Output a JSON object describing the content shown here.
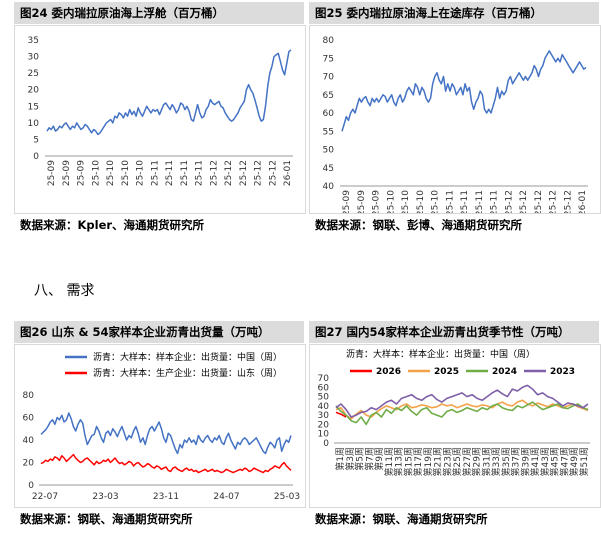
{
  "section_heading": "八、  需求",
  "source_label": "数据来源：",
  "charts": [
    {
      "id": "c24",
      "title": "图24  委内瑞拉原油海上浮舱（百万桶）",
      "source": "数据来源：Kpler、海通期货研究所"
    },
    {
      "id": "c25",
      "title": "图25  委内瑞拉原油海上在途库存（百万桶）",
      "source": "数据来源：钢联、彭博、海通期货研究所"
    },
    {
      "id": "c26",
      "title": "图26  山东 & 54家样本企业沥青出货量（万吨）",
      "source": "数据来源：钢联、海通期货研究所"
    },
    {
      "id": "c27",
      "title": "图27  国内54家样本企业沥青出货季节性（万吨）",
      "source": "数据来源：钢联、海通期货研究所"
    }
  ],
  "chart_data": [
    {
      "type": "line",
      "title": "委内瑞拉原油海上浮舱（百万桶）",
      "ylim": [
        0,
        35
      ],
      "yticks": [
        0,
        5,
        10,
        15,
        20,
        25,
        30,
        35
      ],
      "xticks": [
        "25-09",
        "25-09",
        "25-09",
        "25-10",
        "25-10",
        "25-10",
        "25-10",
        "25-11",
        "25-11",
        "25-11",
        "25-11",
        "25-12",
        "25-12",
        "25-12",
        "25-12",
        "25-12",
        "26-01"
      ],
      "series": [
        {
          "name": "",
          "color": "#4472c4",
          "values": [
            7.5,
            8.5,
            8,
            9,
            7.5,
            8,
            9,
            8.5,
            9.5,
            10,
            9,
            8,
            9,
            8.5,
            10,
            9,
            8,
            8.5,
            9.5,
            9,
            8,
            7,
            8,
            7.5,
            6.5,
            7,
            8,
            9,
            10,
            10.5,
            11,
            10,
            12,
            11.5,
            13,
            12.5,
            11.5,
            13,
            12,
            14,
            12.5,
            13.5,
            12,
            14.5,
            13,
            12,
            13.5,
            15,
            14,
            13,
            14,
            13.5,
            14,
            12.5,
            14,
            15.5,
            16,
            15,
            14,
            15.5,
            14.5,
            13,
            14,
            16,
            15.5,
            14,
            15,
            13.5,
            11,
            10.5,
            13,
            15.5,
            13,
            11.5,
            12,
            14,
            15,
            17,
            16,
            15.5,
            16,
            16.5,
            15,
            14.5,
            13,
            12,
            11,
            10.5,
            11,
            12,
            13,
            14.5,
            15.5,
            16.5,
            20,
            21.5,
            20,
            19,
            17,
            14.5,
            12,
            10.5,
            11,
            15,
            21,
            25,
            27,
            30,
            30.5,
            31,
            28.5,
            26,
            24.5,
            28,
            31.5,
            32
          ]
        }
      ]
    },
    {
      "type": "line",
      "title": "委内瑞拉原油海上在途库存（百万桶）",
      "ylim": [
        40,
        80
      ],
      "yticks": [
        40,
        45,
        50,
        55,
        60,
        65,
        70,
        75,
        80
      ],
      "xticks": [
        "25-09",
        "25-09",
        "25-09",
        "25-10",
        "25-10",
        "25-10",
        "25-10",
        "25-11",
        "25-11",
        "25-11",
        "25-11",
        "25-12",
        "25-12",
        "25-12",
        "25-12",
        "25-12",
        "26-01"
      ],
      "series": [
        {
          "name": "",
          "color": "#4472c4",
          "values": [
            55,
            57,
            59,
            58,
            60,
            61,
            60,
            62,
            64,
            63,
            64,
            64.5,
            63,
            62,
            64,
            63,
            64,
            63,
            64,
            65,
            64.5,
            63,
            64,
            65,
            63,
            62,
            64,
            65,
            63,
            64,
            66,
            67,
            66,
            65,
            68,
            67,
            65,
            67,
            66,
            64,
            63,
            64,
            68,
            70,
            71,
            69,
            68,
            70,
            66,
            68,
            66,
            68,
            67,
            65,
            66,
            67,
            65,
            68,
            66,
            67,
            63,
            61,
            63,
            64,
            66,
            65,
            61,
            60,
            61,
            60,
            62,
            64,
            67,
            64,
            66,
            65,
            66,
            69,
            70,
            68,
            69,
            70,
            71,
            70,
            69,
            70,
            69,
            70,
            71,
            73,
            72,
            70,
            72,
            73,
            75,
            76,
            77,
            76,
            75,
            74,
            75,
            74,
            76,
            75,
            74,
            73,
            72,
            71,
            72,
            73,
            74,
            73,
            72,
            72.5
          ]
        }
      ]
    },
    {
      "type": "line",
      "title": "山东 & 54家样本企业沥青出货量（万吨）",
      "ylim": [
        0,
        80
      ],
      "yticks": [
        0,
        20,
        40,
        60,
        80
      ],
      "xticks": [
        "22-07",
        "23-03",
        "23-11",
        "24-07",
        "25-03"
      ],
      "series": [
        {
          "name": "沥青：大样本：生产企业：出货量：山东（周）",
          "color": "#ff0000",
          "values": [
            19,
            20,
            22,
            21,
            23,
            22,
            25,
            24,
            22,
            26,
            24,
            21,
            23,
            25,
            27,
            24,
            22,
            20,
            21,
            23,
            24,
            22,
            20,
            18,
            21,
            19,
            20,
            22,
            21,
            23,
            20,
            22,
            24,
            21,
            19,
            20,
            18,
            19,
            21,
            20,
            17,
            19,
            20,
            18,
            16,
            17,
            19,
            18,
            16,
            15,
            17,
            16,
            14,
            15,
            16,
            13,
            12,
            15,
            16,
            14,
            13,
            12,
            14,
            15,
            13,
            14,
            12,
            13,
            11,
            12,
            13,
            14,
            12,
            13,
            14,
            12,
            13,
            12,
            11,
            12,
            14,
            13,
            12,
            11,
            12,
            13,
            14,
            13,
            15,
            14,
            12,
            13,
            15,
            14,
            13,
            12,
            11,
            13,
            12,
            14,
            15,
            17,
            16,
            15,
            18,
            20,
            17,
            15,
            13
          ]
        },
        {
          "name": "沥青：大样本：样本企业：出货量：中国（周）",
          "color": "#4472c4",
          "values": [
            45,
            47,
            49,
            52,
            56,
            58,
            54,
            60,
            58,
            62,
            56,
            58,
            64,
            59,
            52,
            48,
            54,
            58,
            55,
            44,
            36,
            40,
            44,
            45,
            52,
            48,
            42,
            38,
            46,
            48,
            44,
            50,
            47,
            43,
            48,
            52,
            46,
            40,
            44,
            42,
            48,
            52,
            46,
            38,
            42,
            36,
            44,
            50,
            52,
            48,
            52,
            56,
            50,
            42,
            38,
            46,
            44,
            38,
            32,
            28,
            36,
            33,
            40,
            38,
            42,
            38,
            40,
            36,
            44,
            40,
            38,
            42,
            44,
            40,
            38,
            42,
            40,
            44,
            38,
            36,
            42,
            46,
            40,
            36,
            32,
            38,
            36,
            40,
            42,
            40,
            36,
            38,
            40,
            42,
            38,
            34,
            30,
            28,
            34,
            38,
            36,
            33,
            40,
            42,
            30,
            36,
            40,
            38,
            44
          ]
        }
      ]
    },
    {
      "type": "line",
      "title": "国内54家样本企业沥青出货季节性（万吨）",
      "ylim": [
        0,
        70
      ],
      "yticks": [
        0,
        10,
        20,
        30,
        40,
        50,
        60,
        70
      ],
      "xticks": [
        "第1周",
        "第3周",
        "第5周",
        "第7周",
        "第9周",
        "第11周",
        "第13周",
        "第15周",
        "第17周",
        "第19周",
        "第21周",
        "第23周",
        "第25周",
        "第27周",
        "第29周",
        "第31周",
        "第33周",
        "第35周",
        "第37周",
        "第39周",
        "第41周",
        "第43周",
        "第45周",
        "第47周",
        "第49周",
        "第51周"
      ],
      "legend_title": "沥青：大样本：样本企业：出货量：中国（周）",
      "series": [
        {
          "name": "2026",
          "color": "#ff0000",
          "values": [
            33,
            31,
            28
          ]
        },
        {
          "name": "2025",
          "color": "#f4a24a",
          "values": [
            36,
            38,
            30,
            26,
            31,
            35,
            30,
            28,
            33,
            37,
            40,
            38,
            36,
            40,
            42,
            38,
            39,
            41,
            40,
            38,
            39,
            42,
            40,
            41,
            38,
            40,
            42,
            40,
            39,
            41,
            40,
            38,
            42,
            44,
            41,
            40,
            44,
            46,
            42,
            40,
            43,
            41,
            39,
            42,
            40,
            38,
            40,
            42,
            39,
            37,
            35
          ]
        },
        {
          "name": "2024",
          "color": "#70ad47",
          "values": [
            40,
            34,
            30,
            24,
            22,
            28,
            20,
            30,
            33,
            28,
            36,
            32,
            38,
            35,
            40,
            34,
            30,
            36,
            38,
            32,
            30,
            28,
            34,
            36,
            33,
            35,
            38,
            36,
            34,
            38,
            36,
            40,
            42,
            38,
            36,
            35,
            40,
            38,
            41,
            44,
            40,
            36,
            38,
            40,
            42,
            38,
            37,
            40,
            42,
            38,
            36
          ]
        },
        {
          "name": "2023",
          "color": "#7f5fa8",
          "values": [
            38,
            42,
            36,
            28,
            30,
            33,
            34,
            38,
            36,
            40,
            44,
            46,
            42,
            48,
            50,
            52,
            48,
            46,
            50,
            52,
            47,
            44,
            48,
            50,
            52,
            54,
            50,
            52,
            48,
            46,
            50,
            54,
            57,
            53,
            50,
            58,
            56,
            60,
            62,
            58,
            52,
            54,
            50,
            48,
            44,
            40,
            43,
            42,
            40,
            38,
            42
          ]
        }
      ]
    }
  ]
}
